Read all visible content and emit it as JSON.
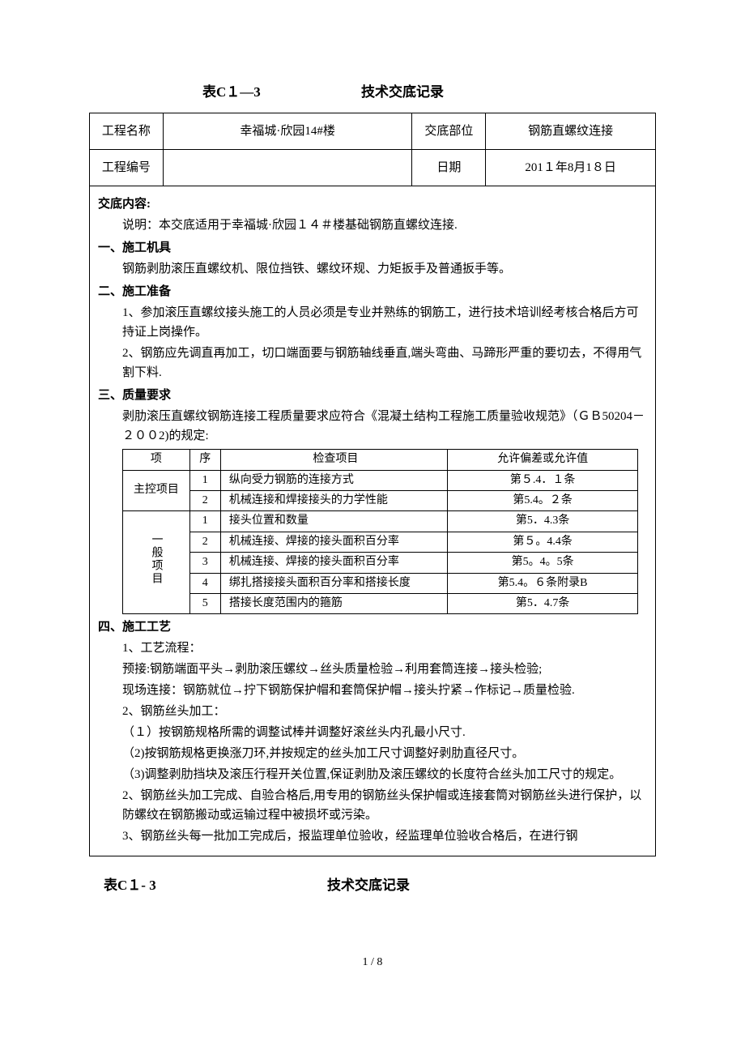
{
  "title": {
    "table_code": "表C１—3",
    "title_text": "技术交底记录"
  },
  "header_table": {
    "project_name_label": "工程名称",
    "project_name_value": "幸福城·欣园14#楼",
    "position_label": "交底部位",
    "position_value": "钢筋直螺纹连接",
    "project_no_label": "工程编号",
    "project_no_value": "",
    "date_label": "日期",
    "date_value": "201１年8月1８日"
  },
  "content": {
    "header": "交底内容:",
    "intro": "说明：本交底适用于幸福城·欣园１４＃楼基础钢筋直螺纹连接.",
    "s1_title": "一、施工机具",
    "s1_body": "钢筋剥肋滚压直螺纹机、限位挡铁、螺纹环规、力矩扳手及普通扳手等。",
    "s2_title": "二、施工准备",
    "s2_p1": "1、参加滚压直螺纹接头施工的人员必须是专业并熟练的钢筋工，进行技术培训经考核合格后方可持证上岗操作。",
    "s2_p2": "2、钢筋应先调直再加工，切口端面要与钢筋轴线垂直,端头弯曲、马蹄形严重的要切去，不得用气割下料.",
    "s3_title": "三、质量要求",
    "s3_intro": "剥肋滚压直螺纹钢筋连接工程质量要求应符合《混凝土结构工程施工质量验收规范》（ＧＢ50204－２００2)的规定:",
    "inspect_table": {
      "cols": [
        "项",
        "序",
        "检查项目",
        "允许偏差或允许值"
      ],
      "group1_label": "主控项目",
      "group2_label": "一般项目",
      "rows": [
        {
          "n": "1",
          "item": "纵向受力钢筋的连接方式",
          "val": "第５.4．１条"
        },
        {
          "n": "2",
          "item": "机械连接和焊接接头的力学性能",
          "val": "第5.4。２条"
        },
        {
          "n": "1",
          "item": "接头位置和数量",
          "val": "第5．4.3条"
        },
        {
          "n": "2",
          "item": "机械连接、焊接的接头面积百分率",
          "val": "第５。4.4条"
        },
        {
          "n": "3",
          "item": "机械连接、焊接的接头面积百分率",
          "val": "第5。4。5条"
        },
        {
          "n": "4",
          "item": "绑扎搭接接头面积百分率和搭接长度",
          "val": "第5.4。６条附录B"
        },
        {
          "n": "5",
          "item": "搭接长度范围内的箍筋",
          "val": "第5．4.7条"
        }
      ]
    },
    "s4_title": "四、施工工艺",
    "s4_p1": "1、工艺流程：",
    "s4_p2": "预接:钢筋端面平头→剥肋滚压螺纹→丝头质量检验→利用套筒连接→接头检验;",
    "s4_p3": "现场连接：钢筋就位→拧下钢筋保护帽和套筒保护帽→接头拧紧→作标记→质量检验.",
    "s4_p4": "2、钢筋丝头加工：",
    "s4_p5": "（１）按钢筋规格所需的调整试棒并调整好滚丝头内孔最小尺寸.",
    "s4_p6": "（2)按钢筋规格更换涨刀环,并按规定的丝头加工尺寸调整好剥肋直径尺寸。",
    "s4_p7": "（3)调整剥肋挡块及滚压行程开关位置,保证剥肋及滚压螺纹的长度符合丝头加工尺寸的规定。",
    "s4_p8": "2、钢筋丝头加工完成、自验合格后,用专用的钢筋丝头保护帽或连接套筒对钢筋丝头进行保护，以防螺纹在钢筋搬动或运输过程中被损坏或污染。",
    "s4_p9": "3、钢筋丝头每一批加工完成后，报监理单位验收，经监理单位验收合格后，在进行钢"
  },
  "footer_title": {
    "table_code": "表C１- 3",
    "title_text": "技术交底记录"
  },
  "page": "1 / 8"
}
